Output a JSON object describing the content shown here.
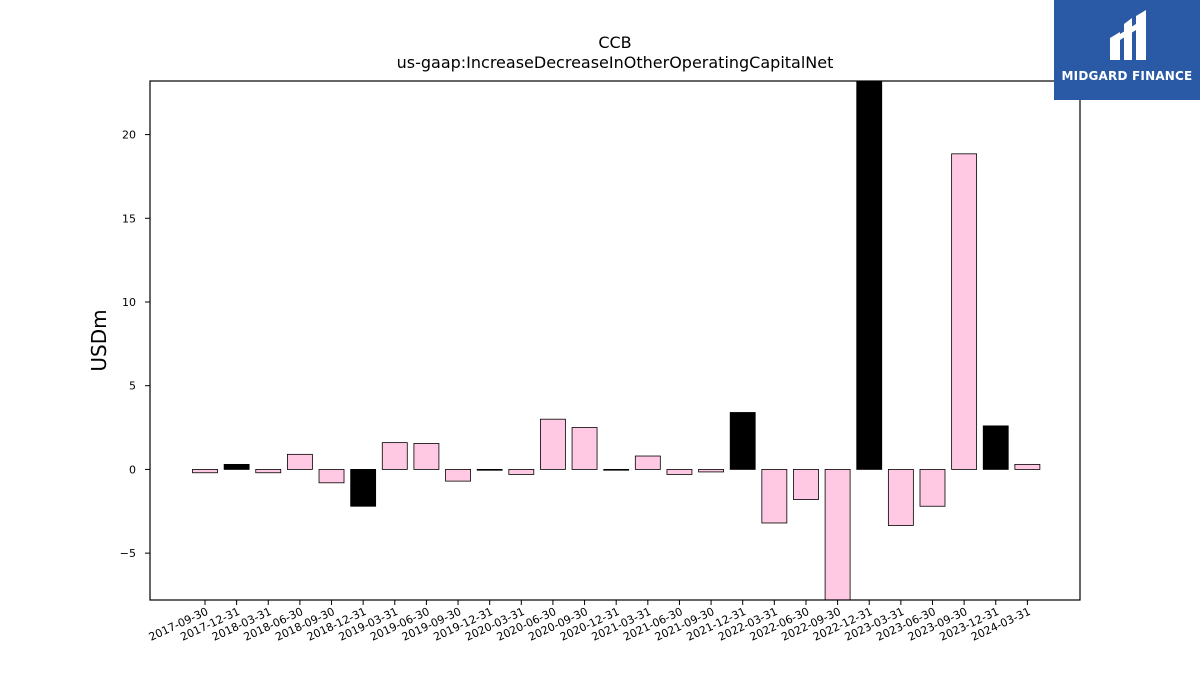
{
  "chart_data": {
    "type": "bar",
    "title": "CCB",
    "subtitle": "us-gaap:IncreaseDecreaseInOtherOperatingCapitalNet",
    "ylabel": "USDm",
    "xlabel": "",
    "ylim": [
      -7.8,
      23.2
    ],
    "yticks": [
      -5,
      0,
      5,
      10,
      15,
      20
    ],
    "ytick_labels": [
      "−5",
      "0",
      "5",
      "10",
      "15",
      "20"
    ],
    "categories": [
      "2017-09-30",
      "2017-12-31",
      "2018-03-31",
      "2018-06-30",
      "2018-09-30",
      "2018-12-31",
      "2019-03-31",
      "2019-06-30",
      "2019-09-30",
      "2019-12-31",
      "2020-03-31",
      "2020-06-30",
      "2020-09-30",
      "2020-12-31",
      "2021-03-31",
      "2021-06-30",
      "2021-09-30",
      "2021-12-31",
      "2022-03-31",
      "2022-06-30",
      "2022-09-30",
      "2022-12-31",
      "2023-03-31",
      "2023-06-30",
      "2023-09-30",
      "2023-12-31",
      "2024-03-31"
    ],
    "values": [
      -0.2,
      0.3,
      -0.2,
      0.9,
      -0.8,
      -2.2,
      1.6,
      1.55,
      -0.7,
      -0.05,
      -0.3,
      3.0,
      2.5,
      -0.03,
      0.8,
      -0.3,
      -0.15,
      3.4,
      -3.2,
      -1.8,
      -7.8,
      23.2,
      -3.35,
      -2.2,
      18.85,
      2.6,
      0.3
    ],
    "bar_colors": [
      "#ffc8e3",
      "#000000",
      "#ffc8e3",
      "#ffc8e3",
      "#ffc8e3",
      "#000000",
      "#ffc8e3",
      "#ffc8e3",
      "#ffc8e3",
      "#000000",
      "#ffc8e3",
      "#ffc8e3",
      "#ffc8e3",
      "#000000",
      "#ffc8e3",
      "#ffc8e3",
      "#ffc8e3",
      "#000000",
      "#ffc8e3",
      "#ffc8e3",
      "#ffc8e3",
      "#000000",
      "#ffc8e3",
      "#ffc8e3",
      "#ffc8e3",
      "#000000",
      "#ffc8e3"
    ],
    "grid": false,
    "legend": "none"
  },
  "logo": {
    "text": "MIDGARD FINANCE",
    "background": "#2a5aa6"
  }
}
